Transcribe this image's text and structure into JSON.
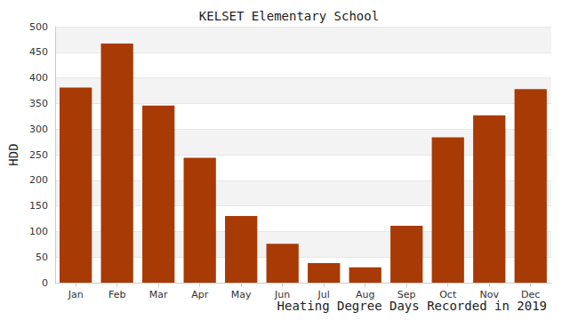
{
  "chart_data": {
    "type": "bar",
    "title": "KELSET Elementary School",
    "xlabel": "Heating Degree Days Recorded in 2019",
    "ylabel": "HDD",
    "categories": [
      "Jan",
      "Feb",
      "Mar",
      "Apr",
      "May",
      "Jun",
      "Jul",
      "Aug",
      "Sep",
      "Oct",
      "Nov",
      "Dec"
    ],
    "values": [
      381,
      467,
      346,
      244,
      130,
      76,
      38,
      30,
      111,
      284,
      327,
      378
    ],
    "color": "#a83a05",
    "ylim": [
      0,
      500
    ],
    "yticks": [
      0,
      50,
      100,
      150,
      200,
      250,
      300,
      350,
      400,
      450,
      500
    ],
    "grid": true
  }
}
